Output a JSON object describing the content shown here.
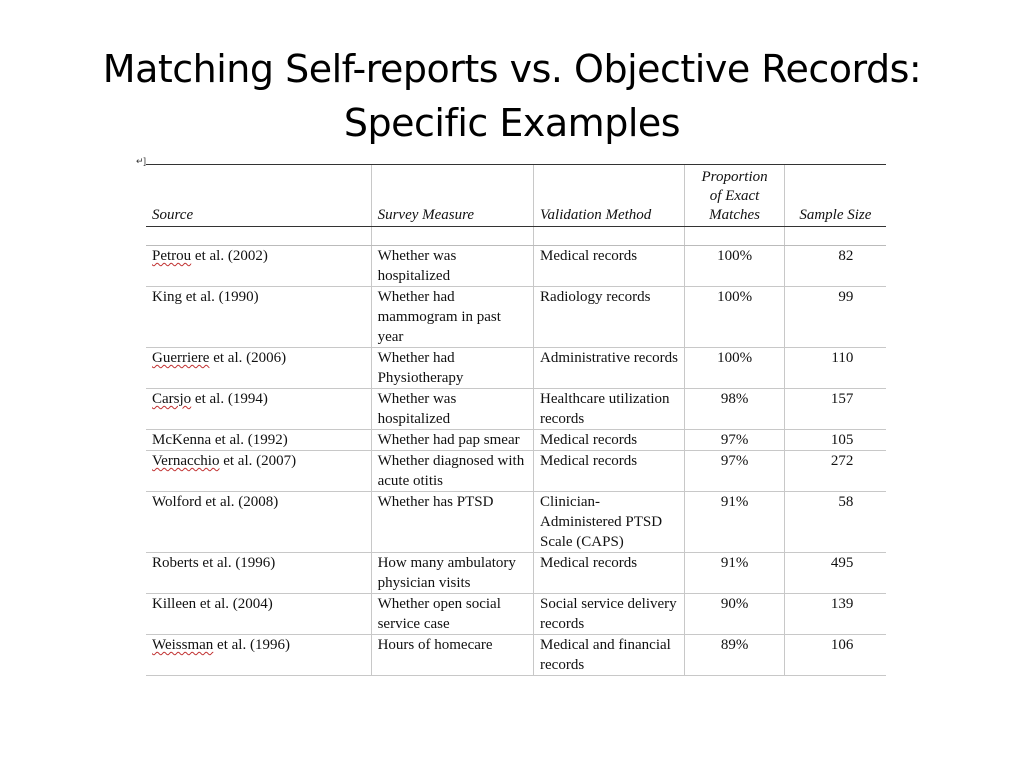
{
  "title": {
    "line1": "Matching Self-reports vs. Objective Records:",
    "line2": "Specific Examples"
  },
  "anchor": "↵]",
  "table": {
    "headers": {
      "source": "Source",
      "survey_measure": "Survey Measure",
      "validation_method": "Validation Method",
      "proportion_line1": "Proportion",
      "proportion_line2": "of Exact",
      "proportion_line3": "Matches",
      "sample_size": "Sample Size"
    },
    "rows": [
      {
        "author": "Petrou",
        "rest": " et al. (2002)",
        "flagged": true,
        "survey": "Whether was hospitalized",
        "validation": "Medical records",
        "proportion": "100%",
        "n": "82"
      },
      {
        "author": "King et al. (1990)",
        "rest": "",
        "flagged": false,
        "survey": "Whether had mammogram in past year",
        "validation": "Radiology records",
        "proportion": "100%",
        "n": "99"
      },
      {
        "author": "Guerriere",
        "rest": " et al. (2006)",
        "flagged": true,
        "survey": "Whether had Physiotherapy",
        "validation": "Administrative records",
        "proportion": "100%",
        "n": "110"
      },
      {
        "author": "Carsjo",
        "rest": " et al. (1994)",
        "flagged": true,
        "survey": "Whether was hospitalized",
        "validation": "Healthcare utilization records",
        "proportion": "98%",
        "n": "157"
      },
      {
        "author": "McKenna et al. (1992)",
        "rest": "",
        "flagged": false,
        "survey": "Whether had pap smear",
        "validation": "Medical records",
        "proportion": "97%",
        "n": "105"
      },
      {
        "author": "Vernacchio",
        "rest": " et al. (2007)",
        "flagged": true,
        "survey": "Whether diagnosed with acute otitis",
        "validation": "Medical records",
        "proportion": "97%",
        "n": "272"
      },
      {
        "author": "Wolford et al. (2008)",
        "rest": "",
        "flagged": false,
        "survey": "Whether has PTSD",
        "validation": "Clinician-Administered PTSD Scale (CAPS)",
        "proportion": "91%",
        "n": "58"
      },
      {
        "author": "Roberts et al. (1996)",
        "rest": "",
        "flagged": false,
        "survey": "How many ambulatory physician visits",
        "validation": "Medical records",
        "proportion": "91%",
        "n": "495"
      },
      {
        "author": "Killeen et al. (2004)",
        "rest": "",
        "flagged": false,
        "survey": "Whether open social service case",
        "validation": "Social service delivery records",
        "proportion": "90%",
        "n": "139"
      },
      {
        "author": "Weissman",
        "rest": " et al. (1996)",
        "flagged": true,
        "survey": "Hours of homecare",
        "validation": "Medical and financial records",
        "proportion": "89%",
        "n": "106"
      }
    ]
  },
  "colors": {
    "spellcheck_underline": "#c03030",
    "grid_line": "#c8c8c8",
    "text": "#111111"
  }
}
